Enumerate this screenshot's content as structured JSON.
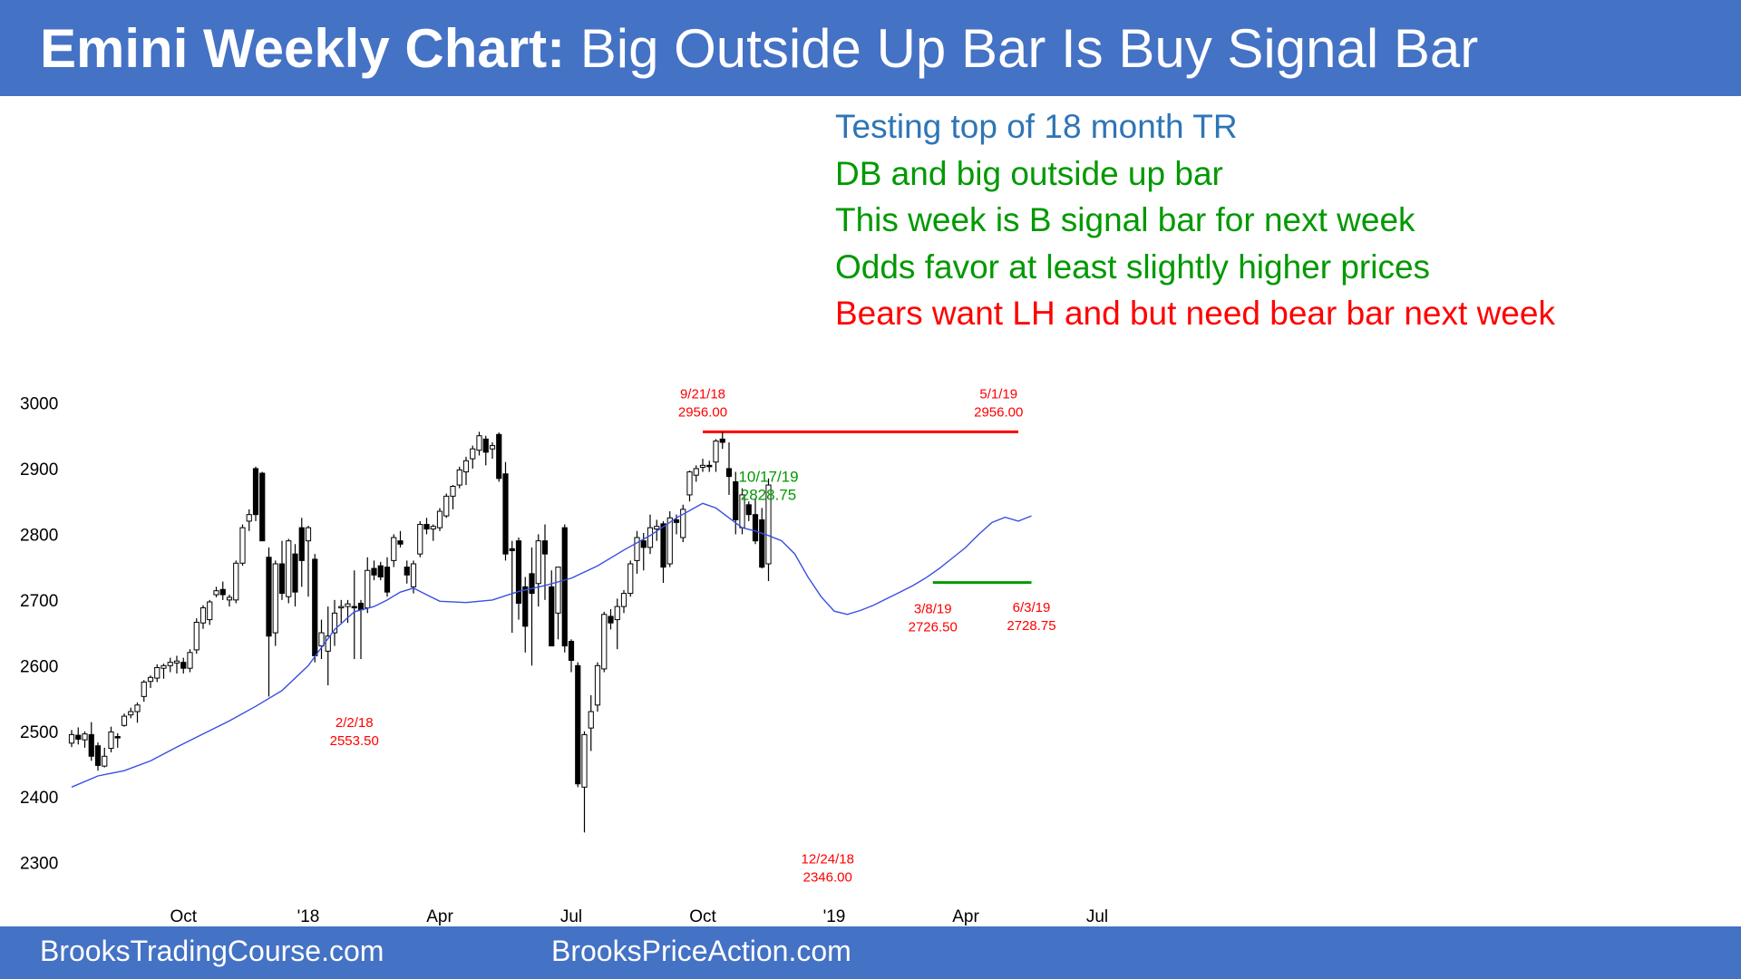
{
  "header": {
    "title_bold": "Emini Weekly Chart:",
    "title_rest": "Big Outside Up Bar Is Buy Signal Bar"
  },
  "notes": [
    {
      "text": "Testing top of 18 month TR",
      "color": "#2e75b6"
    },
    {
      "text": "DB and big outside up bar",
      "color": "#009900"
    },
    {
      "text": "This week is B signal bar for next week",
      "color": "#009900"
    },
    {
      "text": "Odds favor at least slightly higher prices",
      "color": "#009900"
    },
    {
      "text": "Bears want LH and but need bear bar next week",
      "color": "#ff0000"
    }
  ],
  "footer": {
    "left": "BrooksTradingCourse.com",
    "right": "BrooksPriceAction.com"
  },
  "colors": {
    "header_bg": "#4472c4",
    "ema": "#3a4fe0",
    "resistance_line": "#ff0000",
    "support_line": "#009900",
    "bear_candle": "#000000",
    "bull_candle": "#ffffff"
  },
  "chart_data": {
    "type": "candlestick",
    "title": "",
    "xlabel": "",
    "ylabel": "",
    "ylim": [
      2270,
      3020
    ],
    "y_ticks": [
      2300,
      2400,
      2500,
      2600,
      2700,
      2800,
      2900,
      3000
    ],
    "x_ticks": [
      {
        "label": "Oct",
        "week": 17
      },
      {
        "label": "'18",
        "week": 36
      },
      {
        "label": "Apr",
        "week": 56
      },
      {
        "label": "Jul",
        "week": 76
      },
      {
        "label": "Oct",
        "week": 96
      },
      {
        "label": "'19",
        "week": 116
      },
      {
        "label": "Apr",
        "week": 136
      },
      {
        "label": "Jul",
        "week": 156
      }
    ],
    "candles": [
      {
        "o": 2482,
        "h": 2502,
        "l": 2476,
        "c": 2495
      },
      {
        "o": 2494,
        "h": 2506,
        "l": 2480,
        "c": 2488
      },
      {
        "o": 2487,
        "h": 2500,
        "l": 2475,
        "c": 2496
      },
      {
        "o": 2495,
        "h": 2514,
        "l": 2455,
        "c": 2462
      },
      {
        "o": 2478,
        "h": 2483,
        "l": 2440,
        "c": 2448
      },
      {
        "o": 2447,
        "h": 2475,
        "l": 2445,
        "c": 2462
      },
      {
        "o": 2474,
        "h": 2507,
        "l": 2468,
        "c": 2499
      },
      {
        "o": 2492,
        "h": 2497,
        "l": 2475,
        "c": 2490
      },
      {
        "o": 2509,
        "h": 2527,
        "l": 2507,
        "c": 2523
      },
      {
        "o": 2525,
        "h": 2536,
        "l": 2520,
        "c": 2530
      },
      {
        "o": 2530,
        "h": 2544,
        "l": 2513,
        "c": 2540
      },
      {
        "o": 2553,
        "h": 2578,
        "l": 2545,
        "c": 2575
      },
      {
        "o": 2576,
        "h": 2585,
        "l": 2566,
        "c": 2582
      },
      {
        "o": 2581,
        "h": 2602,
        "l": 2575,
        "c": 2597
      },
      {
        "o": 2596,
        "h": 2603,
        "l": 2580,
        "c": 2600
      },
      {
        "o": 2600,
        "h": 2612,
        "l": 2590,
        "c": 2605
      },
      {
        "o": 2604,
        "h": 2615,
        "l": 2588,
        "c": 2607
      },
      {
        "o": 2605,
        "h": 2612,
        "l": 2588,
        "c": 2596
      },
      {
        "o": 2596,
        "h": 2625,
        "l": 2590,
        "c": 2620
      },
      {
        "o": 2624,
        "h": 2672,
        "l": 2618,
        "c": 2666
      },
      {
        "o": 2665,
        "h": 2692,
        "l": 2656,
        "c": 2688
      },
      {
        "o": 2670,
        "h": 2700,
        "l": 2662,
        "c": 2697
      },
      {
        "o": 2708,
        "h": 2720,
        "l": 2704,
        "c": 2714
      },
      {
        "o": 2716,
        "h": 2728,
        "l": 2700,
        "c": 2708
      },
      {
        "o": 2700,
        "h": 2708,
        "l": 2690,
        "c": 2704
      },
      {
        "o": 2700,
        "h": 2760,
        "l": 2695,
        "c": 2756
      },
      {
        "o": 2756,
        "h": 2815,
        "l": 2752,
        "c": 2810
      },
      {
        "o": 2820,
        "h": 2838,
        "l": 2805,
        "c": 2830
      },
      {
        "o": 2900,
        "h": 2903,
        "l": 2820,
        "c": 2830
      },
      {
        "o": 2893,
        "h": 2895,
        "l": 2790,
        "c": 2790
      },
      {
        "o": 2765,
        "h": 2780,
        "l": 2553,
        "c": 2645
      },
      {
        "o": 2650,
        "h": 2760,
        "l": 2630,
        "c": 2755
      },
      {
        "o": 2755,
        "h": 2790,
        "l": 2700,
        "c": 2710
      },
      {
        "o": 2705,
        "h": 2793,
        "l": 2695,
        "c": 2790
      },
      {
        "o": 2770,
        "h": 2785,
        "l": 2690,
        "c": 2712
      },
      {
        "o": 2810,
        "h": 2825,
        "l": 2720,
        "c": 2760
      },
      {
        "o": 2790,
        "h": 2813,
        "l": 2705,
        "c": 2810
      },
      {
        "o": 2762,
        "h": 2770,
        "l": 2605,
        "c": 2615
      },
      {
        "o": 2630,
        "h": 2670,
        "l": 2610,
        "c": 2650
      },
      {
        "o": 2622,
        "h": 2690,
        "l": 2570,
        "c": 2645
      },
      {
        "o": 2650,
        "h": 2700,
        "l": 2630,
        "c": 2680
      },
      {
        "o": 2688,
        "h": 2700,
        "l": 2665,
        "c": 2690
      },
      {
        "o": 2690,
        "h": 2700,
        "l": 2665,
        "c": 2694
      },
      {
        "o": 2690,
        "h": 2745,
        "l": 2610,
        "c": 2688
      },
      {
        "o": 2695,
        "h": 2700,
        "l": 2610,
        "c": 2685
      },
      {
        "o": 2688,
        "h": 2765,
        "l": 2680,
        "c": 2745
      },
      {
        "o": 2748,
        "h": 2760,
        "l": 2730,
        "c": 2738
      },
      {
        "o": 2752,
        "h": 2758,
        "l": 2730,
        "c": 2735
      },
      {
        "o": 2750,
        "h": 2765,
        "l": 2705,
        "c": 2712
      },
      {
        "o": 2760,
        "h": 2800,
        "l": 2750,
        "c": 2795
      },
      {
        "o": 2790,
        "h": 2805,
        "l": 2780,
        "c": 2785
      },
      {
        "o": 2750,
        "h": 2760,
        "l": 2725,
        "c": 2738
      },
      {
        "o": 2720,
        "h": 2760,
        "l": 2710,
        "c": 2755
      },
      {
        "o": 2770,
        "h": 2820,
        "l": 2765,
        "c": 2815
      },
      {
        "o": 2815,
        "h": 2825,
        "l": 2800,
        "c": 2808
      },
      {
        "o": 2808,
        "h": 2815,
        "l": 2790,
        "c": 2812
      },
      {
        "o": 2810,
        "h": 2840,
        "l": 2805,
        "c": 2835
      },
      {
        "o": 2828,
        "h": 2862,
        "l": 2825,
        "c": 2858
      },
      {
        "o": 2858,
        "h": 2875,
        "l": 2838,
        "c": 2873
      },
      {
        "o": 2875,
        "h": 2903,
        "l": 2870,
        "c": 2898
      },
      {
        "o": 2895,
        "h": 2918,
        "l": 2875,
        "c": 2912
      },
      {
        "o": 2915,
        "h": 2935,
        "l": 2900,
        "c": 2930
      },
      {
        "o": 2928,
        "h": 2956,
        "l": 2920,
        "c": 2950
      },
      {
        "o": 2945,
        "h": 2950,
        "l": 2905,
        "c": 2925
      },
      {
        "o": 2930,
        "h": 2940,
        "l": 2915,
        "c": 2935
      },
      {
        "o": 2952,
        "h": 2955,
        "l": 2880,
        "c": 2885
      },
      {
        "o": 2892,
        "h": 2910,
        "l": 2760,
        "c": 2770
      },
      {
        "o": 2778,
        "h": 2790,
        "l": 2650,
        "c": 2775
      },
      {
        "o": 2790,
        "h": 2795,
        "l": 2670,
        "c": 2695
      },
      {
        "o": 2720,
        "h": 2735,
        "l": 2620,
        "c": 2660
      },
      {
        "o": 2740,
        "h": 2780,
        "l": 2600,
        "c": 2710
      },
      {
        "o": 2725,
        "h": 2800,
        "l": 2690,
        "c": 2790
      },
      {
        "o": 2790,
        "h": 2815,
        "l": 2700,
        "c": 2770
      },
      {
        "o": 2720,
        "h": 2745,
        "l": 2630,
        "c": 2630
      },
      {
        "o": 2680,
        "h": 2750,
        "l": 2640,
        "c": 2750
      },
      {
        "o": 2810,
        "h": 2815,
        "l": 2620,
        "c": 2630
      },
      {
        "o": 2637,
        "h": 2640,
        "l": 2590,
        "c": 2608
      },
      {
        "o": 2600,
        "h": 2605,
        "l": 2415,
        "c": 2420
      },
      {
        "o": 2415,
        "h": 2500,
        "l": 2346,
        "c": 2495
      },
      {
        "o": 2505,
        "h": 2555,
        "l": 2470,
        "c": 2530
      },
      {
        "o": 2540,
        "h": 2605,
        "l": 2530,
        "c": 2600
      },
      {
        "o": 2595,
        "h": 2682,
        "l": 2590,
        "c": 2678
      },
      {
        "o": 2675,
        "h": 2686,
        "l": 2655,
        "c": 2665
      },
      {
        "o": 2670,
        "h": 2702,
        "l": 2625,
        "c": 2690
      },
      {
        "o": 2690,
        "h": 2715,
        "l": 2680,
        "c": 2710
      },
      {
        "o": 2710,
        "h": 2760,
        "l": 2705,
        "c": 2755
      },
      {
        "o": 2760,
        "h": 2805,
        "l": 2740,
        "c": 2795
      },
      {
        "o": 2790,
        "h": 2802,
        "l": 2745,
        "c": 2780
      },
      {
        "o": 2780,
        "h": 2830,
        "l": 2770,
        "c": 2810
      },
      {
        "o": 2808,
        "h": 2822,
        "l": 2790,
        "c": 2812
      },
      {
        "o": 2816,
        "h": 2820,
        "l": 2726,
        "c": 2750
      },
      {
        "o": 2755,
        "h": 2835,
        "l": 2750,
        "c": 2825
      },
      {
        "o": 2822,
        "h": 2830,
        "l": 2800,
        "c": 2818
      },
      {
        "o": 2795,
        "h": 2845,
        "l": 2788,
        "c": 2838
      },
      {
        "o": 2860,
        "h": 2897,
        "l": 2850,
        "c": 2895
      },
      {
        "o": 2890,
        "h": 2905,
        "l": 2880,
        "c": 2900
      },
      {
        "o": 2902,
        "h": 2915,
        "l": 2895,
        "c": 2905
      },
      {
        "o": 2905,
        "h": 2912,
        "l": 2895,
        "c": 2903
      },
      {
        "o": 2910,
        "h": 2945,
        "l": 2895,
        "c": 2942
      },
      {
        "o": 2945,
        "h": 2956,
        "l": 2930,
        "c": 2940
      },
      {
        "o": 2900,
        "h": 2940,
        "l": 2860,
        "c": 2888
      },
      {
        "o": 2880,
        "h": 2895,
        "l": 2800,
        "c": 2822
      },
      {
        "o": 2810,
        "h": 2870,
        "l": 2800,
        "c": 2860
      },
      {
        "o": 2845,
        "h": 2850,
        "l": 2820,
        "c": 2830
      },
      {
        "o": 2830,
        "h": 2855,
        "l": 2785,
        "c": 2790
      },
      {
        "o": 2822,
        "h": 2840,
        "l": 2748,
        "c": 2750
      },
      {
        "o": 2755,
        "h": 2885,
        "l": 2728.75,
        "c": 2875
      }
    ],
    "ema20": [
      [
        0,
        2415
      ],
      [
        4,
        2432
      ],
      [
        8,
        2440
      ],
      [
        12,
        2455
      ],
      [
        16,
        2476
      ],
      [
        20,
        2496
      ],
      [
        24,
        2516
      ],
      [
        28,
        2538
      ],
      [
        32,
        2562
      ],
      [
        36,
        2600
      ],
      [
        40,
        2655
      ],
      [
        43,
        2682
      ],
      [
        46,
        2690
      ],
      [
        48,
        2700
      ],
      [
        50,
        2712
      ],
      [
        52,
        2718
      ],
      [
        54,
        2708
      ],
      [
        56,
        2698
      ],
      [
        60,
        2696
      ],
      [
        64,
        2700
      ],
      [
        68,
        2713
      ],
      [
        72,
        2722
      ],
      [
        76,
        2733
      ],
      [
        80,
        2752
      ],
      [
        84,
        2776
      ],
      [
        88,
        2798
      ],
      [
        92,
        2825
      ],
      [
        96,
        2847
      ],
      [
        98,
        2840
      ],
      [
        100,
        2825
      ],
      [
        102,
        2810
      ],
      [
        104,
        2805
      ],
      [
        106,
        2798
      ],
      [
        108,
        2790
      ],
      [
        110,
        2770
      ],
      [
        112,
        2735
      ],
      [
        114,
        2705
      ],
      [
        116,
        2683
      ],
      [
        118,
        2678
      ],
      [
        120,
        2684
      ],
      [
        122,
        2692
      ],
      [
        124,
        2702
      ],
      [
        126,
        2712
      ],
      [
        128,
        2722
      ],
      [
        130,
        2734
      ],
      [
        132,
        2748
      ],
      [
        134,
        2764
      ],
      [
        136,
        2780
      ],
      [
        138,
        2800
      ],
      [
        140,
        2818
      ],
      [
        142,
        2826
      ],
      [
        144,
        2820
      ],
      [
        146,
        2828
      ]
    ],
    "lines": [
      {
        "name": "resistance",
        "y": 2956,
        "from": 96,
        "to": 144,
        "color": "#ff0000"
      },
      {
        "name": "support",
        "y": 2726.5,
        "from": 131,
        "to": 146,
        "color": "#009900"
      }
    ],
    "annotations": [
      {
        "date": "9/21/18",
        "value": "2956.00",
        "week": 96,
        "price": 2956,
        "pos": "above",
        "color": "#ff0000"
      },
      {
        "date": "5/1/19",
        "value": "2956.00",
        "week": 141,
        "price": 2956,
        "pos": "above",
        "color": "#ff0000"
      },
      {
        "date": "10/17/19",
        "value": "2828.75",
        "week": 106,
        "price": 2828.75,
        "pos": "above",
        "color": "#009900"
      },
      {
        "date": "2/2/18",
        "value": "2553.50",
        "week": 43,
        "price": 2553.5,
        "pos": "below",
        "color": "#ff0000"
      },
      {
        "date": "12/24/18",
        "value": "2346.00",
        "week": 115,
        "price": 2346,
        "pos": "below",
        "color": "#ff0000"
      },
      {
        "date": "3/8/19",
        "value": "2726.50",
        "week": 131,
        "price": 2726.5,
        "pos": "below",
        "color": "#ff0000"
      },
      {
        "date": "6/3/19",
        "value": "2728.75",
        "week": 146,
        "price": 2728.75,
        "pos": "below",
        "color": "#ff0000"
      }
    ]
  }
}
